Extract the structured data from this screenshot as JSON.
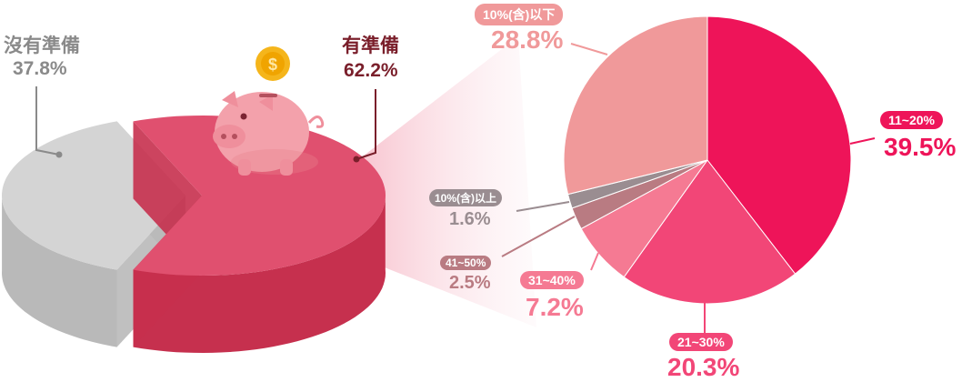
{
  "colors": {
    "prepared": "#e04a6a",
    "unprepared": "#cfcfcf",
    "dark_red": "#7a1f2b",
    "gray_text": "#8a8a8a",
    "brand_pink": "#e91e5a",
    "s_under10": "#f0999a",
    "s_11_20": "#ee1459",
    "s_21_30": "#f24677",
    "s_31_40": "#f57a93",
    "s_41_50": "#b97b82",
    "s_over10": "#9a8d91"
  },
  "chart_data": [
    {
      "type": "pie",
      "style": "3d",
      "categories": [
        "有準備",
        "沒有準備"
      ],
      "values": [
        62.2,
        37.8
      ],
      "value_labels": [
        "62.2%",
        "37.8%"
      ]
    },
    {
      "type": "pie",
      "categories": [
        "11~20%",
        "21~30%",
        "31~40%",
        "41~50%",
        "10%(含)以上",
        "10%(含)以下"
      ],
      "values": [
        39.5,
        20.3,
        7.2,
        2.5,
        1.6,
        28.8
      ],
      "value_labels": [
        "39.5%",
        "20.3%",
        "7.2%",
        "2.5%",
        "1.6%",
        "28.8%"
      ]
    }
  ],
  "icons": [
    "piggy-bank-icon",
    "dollar-coin-icon"
  ]
}
